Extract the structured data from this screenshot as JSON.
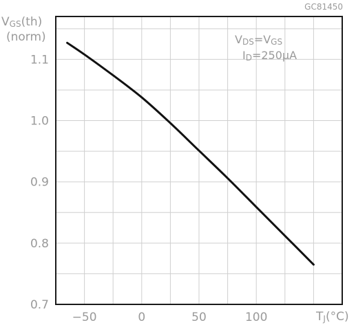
{
  "figure_id": "GC81450",
  "chart_data": {
    "type": "line",
    "y_axis_label": {
      "main": "V",
      "sub": "GS",
      "suffix": "(th)",
      "line2": "(norm)"
    },
    "x_axis_label": {
      "main": "T",
      "sub": "J",
      "suffix": "(°C)"
    },
    "annotation": {
      "line1": {
        "a": "V",
        "a_sub": "DS",
        "eq": "=V",
        "b_sub": "GS"
      },
      "line2": {
        "a": "I",
        "a_sub": "D",
        "eq": "=250μA"
      }
    },
    "x_ticks": [
      "−50",
      "0",
      "50",
      "100"
    ],
    "x_tick_values": [
      -50,
      0,
      50,
      100
    ],
    "y_ticks": [
      "1.1",
      "1.0",
      "0.9",
      "0.8",
      "0.7"
    ],
    "y_tick_values": [
      1.1,
      1.0,
      0.9,
      0.8,
      0.7
    ],
    "xlim": [
      -75,
      175
    ],
    "ylim": [
      0.7,
      1.17
    ],
    "x_gridlines": [
      -50,
      -25,
      0,
      25,
      50,
      75,
      100,
      125,
      150
    ],
    "y_gridlines": [
      0.75,
      0.8,
      0.85,
      0.9,
      0.95,
      1.0,
      1.05,
      1.1,
      1.15
    ],
    "grid": true,
    "series": [
      {
        "points": [
          [
            -65,
            1.127
          ],
          [
            -50,
            1.108
          ],
          [
            -25,
            1.074
          ],
          [
            0,
            1.038
          ],
          [
            25,
            0.996
          ],
          [
            50,
            0.951
          ],
          [
            75,
            0.906
          ],
          [
            100,
            0.859
          ],
          [
            125,
            0.812
          ],
          [
            150,
            0.765
          ]
        ]
      }
    ]
  }
}
